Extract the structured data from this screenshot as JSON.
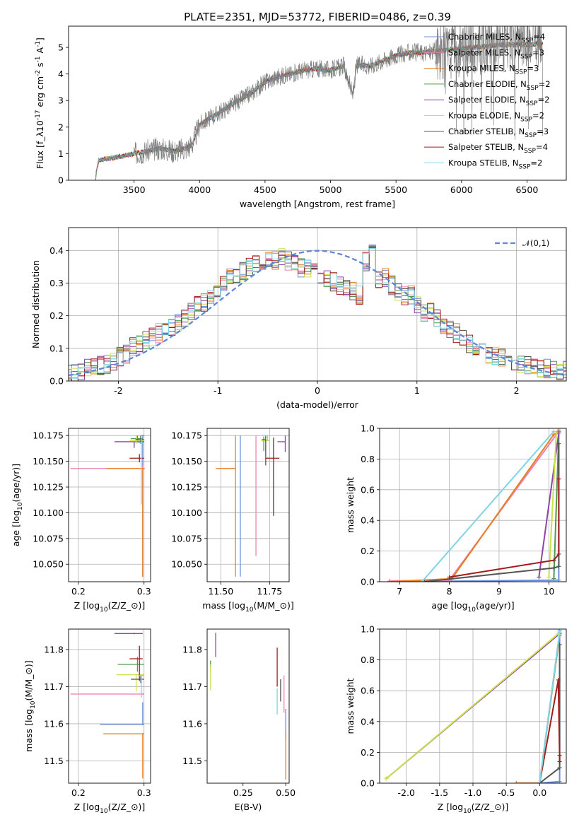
{
  "title": "PLATE=2351, MJD=53772, FIBERID=0486, z=0.39",
  "colors": {
    "chabrier_miles": "#6a8fd6",
    "salpeter_miles": "#ee82b4",
    "kroupa_miles": "#e67e22",
    "chabrier_elodie": "#4e9a4e",
    "salpeter_elodie": "#8e44ad",
    "kroupa_elodie": "#cbe04a",
    "chabrier_stelib": "#555555",
    "salpeter_stelib": "#a31c1c",
    "kroupa_stelib": "#7fd6e3",
    "data": "#808080",
    "gauss": "#5f87d6"
  },
  "chart_data": [
    {
      "id": "spectrum",
      "type": "line",
      "xlabel": "wavelength [Angstrom, rest frame]",
      "ylabel": "Flux [f$_\\lambda$10$^{-17}$ erg cm$^{-2}$ s$^{-1}$ A$^{-1}$]",
      "xlim": [
        3000,
        6800
      ],
      "ylim": [
        0,
        5.8
      ],
      "xticks": [
        3500,
        4000,
        4500,
        5000,
        5500,
        6000,
        6500
      ],
      "yticks": [
        0,
        1,
        2,
        3,
        4,
        5
      ],
      "grid": false,
      "legend": "right",
      "series": [
        {
          "name": "Chabrier MILES, N$_{SSP}$=4",
          "color": "#6a8fd6"
        },
        {
          "name": "Salpeter MILES, N$_{SSP}$=3",
          "color": "#ee82b4"
        },
        {
          "name": "Kroupa MILES, N$_{SSP}$=3",
          "color": "#e67e22"
        },
        {
          "name": "Chabrier ELODIE, N$_{SSP}$=2",
          "color": "#4e9a4e"
        },
        {
          "name": "Salpeter ELODIE, N$_{SSP}$=2",
          "color": "#8e44ad"
        },
        {
          "name": "Kroupa ELODIE, N$_{SSP}$=2",
          "color": "#cbe04a"
        },
        {
          "name": "Chabrier STELIB, N$_{SSP}$=3",
          "color": "#555555"
        },
        {
          "name": "Salpeter STELIB, N$_{SSP}$=4",
          "color": "#a31c1c"
        },
        {
          "name": "Kroupa STELIB, N$_{SSP}$=2",
          "color": "#7fd6e3"
        }
      ],
      "continuum": {
        "x": [
          3200,
          3230,
          3400,
          3550,
          3700,
          3800,
          3900,
          3950,
          4000,
          4100,
          4200,
          4300,
          4400,
          4500,
          4600,
          4700,
          4800,
          4900,
          5000,
          5100,
          5170,
          5200,
          5300,
          5400,
          5500,
          5600,
          5700,
          5800,
          5900,
          6000,
          6100,
          6200,
          6300,
          6400,
          6500,
          6600
        ],
        "y": [
          0,
          0.75,
          0.9,
          1.05,
          1.2,
          1.1,
          1.2,
          1.4,
          2.1,
          2.4,
          2.7,
          3.0,
          3.3,
          3.7,
          3.9,
          4.0,
          4.15,
          4.2,
          4.15,
          4.3,
          3.2,
          4.35,
          4.3,
          4.5,
          4.7,
          4.8,
          4.8,
          4.85,
          4.9,
          4.95,
          5.0,
          5.05,
          5.1,
          5.1,
          5.1,
          5.15
        ]
      }
    },
    {
      "id": "residual_hist",
      "type": "bar",
      "xlabel": "(data-model)/error",
      "ylabel": "Normed distribution",
      "xlim": [
        -2.5,
        2.5
      ],
      "ylim": [
        0,
        0.47
      ],
      "xticks": [
        -2,
        -1,
        0,
        1,
        2
      ],
      "yticks": [
        0.0,
        0.1,
        0.2,
        0.3,
        0.4
      ],
      "grid": true,
      "legend": "top-right",
      "gauss_label": "$\\mathcal{N}(0,1)$",
      "bin_width": 0.1,
      "base_shape": [
        0.02,
        0.02,
        0.025,
        0.03,
        0.035,
        0.04,
        0.045,
        0.05,
        0.055,
        0.07,
        0.08,
        0.1,
        0.11,
        0.12,
        0.13,
        0.14,
        0.15,
        0.16,
        0.17,
        0.18,
        0.2,
        0.22,
        0.23,
        0.25,
        0.27,
        0.28,
        0.3,
        0.31,
        0.32,
        0.33,
        0.34,
        0.35,
        0.36,
        0.35,
        0.36,
        0.35,
        0.34,
        0.33,
        0.33,
        0.32,
        0.31,
        0.3,
        0.29,
        0.28,
        0.27,
        0.26,
        0.25,
        0.35,
        0.4,
        0.3,
        0.3,
        0.28,
        0.26,
        0.25,
        0.25,
        0.22,
        0.2,
        0.2,
        0.18,
        0.16,
        0.15,
        0.14,
        0.12,
        0.11,
        0.1,
        0.09,
        0.08,
        0.075,
        0.065,
        0.06,
        0.055,
        0.05,
        0.045,
        0.04,
        0.04,
        0.035,
        0.03,
        0.03,
        0.03,
        0.03,
        0.03,
        0.03
      ]
    },
    {
      "id": "age_vs_Z",
      "type": "scatter",
      "xlabel": "Z [log$_{10}$(Z/Z$_\\odot$)]",
      "ylabel": "age  [log$_{10}$($age/yr$)]",
      "xlim": [
        0.185,
        0.31
      ],
      "ylim": [
        10.033,
        10.182
      ],
      "xticks": [
        0.2,
        0.3
      ],
      "yticks": [
        10.05,
        10.075,
        10.1,
        10.125,
        10.15,
        10.175
      ],
      "grid": true,
      "points": [
        {
          "x": 0.298,
          "y": 10.175,
          "xerr": [
            0.002,
            0.002
          ],
          "yerr": [
            0.137,
            0.0
          ],
          "color": "#6a8fd6"
        },
        {
          "x": 0.298,
          "y": 10.143,
          "xerr": [
            0.11,
            0.003
          ],
          "yerr": [
            0.003,
            0.003
          ],
          "color": "#ee82b4"
        },
        {
          "x": 0.298,
          "y": 10.143,
          "xerr": [
            0.055,
            0.003
          ],
          "yerr": [
            0.105,
            0.0
          ],
          "color": "#e67e22"
        },
        {
          "x": 0.29,
          "y": 10.172,
          "xerr": [
            0.01,
            0.008
          ],
          "yerr": [
            0.003,
            0.003
          ],
          "color": "#4e9a4e"
        },
        {
          "x": 0.285,
          "y": 10.169,
          "xerr": [
            0.03,
            0.015
          ],
          "yerr": [
            0.006,
            0.0
          ],
          "color": "#8e44ad"
        },
        {
          "x": 0.288,
          "y": 10.17,
          "xerr": [
            0.01,
            0.012
          ],
          "yerr": [
            0.003,
            0.005
          ],
          "color": "#cbe04a"
        },
        {
          "x": 0.295,
          "y": 10.171,
          "xerr": [
            0.008,
            0.005
          ],
          "yerr": [
            0.004,
            0.004
          ],
          "color": "#555555"
        },
        {
          "x": 0.293,
          "y": 10.153,
          "xerr": [
            0.015,
            0.007
          ],
          "yerr": [
            0.004,
            0.004
          ],
          "color": "#a31c1c"
        },
        {
          "x": 0.296,
          "y": 10.168,
          "xerr": [
            0.005,
            0.004
          ],
          "yerr": [
            0.06,
            0.004
          ],
          "color": "#7fd6e3"
        }
      ]
    },
    {
      "id": "age_vs_mass",
      "type": "scatter",
      "xlabel": "mass [log$_{10}$($M/M_\\odot$)]",
      "ylabel": "",
      "xlim": [
        11.43,
        11.85
      ],
      "ylim": [
        10.033,
        10.182
      ],
      "xticks": [
        11.5,
        11.75
      ],
      "yticks": [
        10.05,
        10.075,
        10.1,
        10.125,
        10.15,
        10.175
      ],
      "grid": true,
      "points": [
        {
          "x": 11.6,
          "y": 10.175,
          "xerr": [
            0.0,
            0.0
          ],
          "yerr": [
            0.137,
            0.0
          ],
          "color": "#6a8fd6"
        },
        {
          "x": 11.68,
          "y": 10.175,
          "xerr": [
            0.0,
            0.0
          ],
          "yerr": [
            0.117,
            0.0
          ],
          "color": "#ee82b4"
        },
        {
          "x": 11.575,
          "y": 10.143,
          "xerr": [
            0.1,
            0.0
          ],
          "yerr": [
            0.105,
            0.032
          ],
          "color": "#e67e22"
        },
        {
          "x": 11.72,
          "y": 10.17,
          "xerr": [
            0.01,
            0.01
          ],
          "yerr": [
            0.01,
            0.004
          ],
          "color": "#4e9a4e"
        },
        {
          "x": 11.83,
          "y": 10.169,
          "xerr": [
            0.04,
            0.0
          ],
          "yerr": [
            0.01,
            0.006
          ],
          "color": "#8e44ad"
        },
        {
          "x": 11.73,
          "y": 10.17,
          "xerr": [
            0.02,
            0.02
          ],
          "yerr": [
            0.01,
            0.005
          ],
          "color": "#cbe04a"
        },
        {
          "x": 11.73,
          "y": 10.171,
          "xerr": [
            0.02,
            0.0
          ],
          "yerr": [
            0.025,
            0.004
          ],
          "color": "#555555"
        },
        {
          "x": 11.77,
          "y": 10.153,
          "xerr": [
            0.04,
            0.03
          ],
          "yerr": [
            0.056,
            0.02
          ],
          "color": "#a31c1c"
        },
        {
          "x": 11.74,
          "y": 10.175,
          "xerr": [
            0.03,
            0.0
          ],
          "yerr": [
            0.005,
            0.0
          ],
          "color": "#7fd6e3"
        }
      ]
    },
    {
      "id": "massweight_vs_age",
      "type": "line",
      "xlabel": "age  [log$_{10}$($age/yr$)]",
      "ylabel": "mass weight",
      "xlim": [
        6.6,
        10.35
      ],
      "ylim": [
        0,
        1
      ],
      "xticks": [
        7,
        8,
        9,
        10
      ],
      "yticks": [
        0.0,
        0.2,
        0.4,
        0.6,
        0.8,
        1.0
      ],
      "grid": true,
      "series": [
        {
          "color": "#6a8fd6",
          "x": [
            6.8,
            10.2,
            10.2
          ],
          "y": [
            0.0,
            0.01,
            0.99
          ]
        },
        {
          "color": "#ee82b4",
          "x": [
            6.8,
            8.0,
            10.2
          ],
          "y": [
            0.005,
            0.01,
            0.98
          ]
        },
        {
          "color": "#e67e22",
          "x": [
            6.8,
            8.05,
            10.1,
            10.2
          ],
          "y": [
            0.0,
            0.02,
            0.96,
            0.98
          ]
        },
        {
          "color": "#4e9a4e",
          "x": [
            10.1,
            10.2
          ],
          "y": [
            0.02,
            0.97
          ]
        },
        {
          "color": "#8e44ad",
          "x": [
            9.8,
            10.2
          ],
          "y": [
            0.03,
            0.97
          ]
        },
        {
          "color": "#cbe04a",
          "x": [
            10.0,
            10.15
          ],
          "y": [
            0.03,
            0.97
          ]
        },
        {
          "color": "#555555",
          "x": [
            7.5,
            10.1,
            10.2,
            10.2
          ],
          "y": [
            0.0,
            0.09,
            0.1,
            0.9
          ]
        },
        {
          "color": "#a31c1c",
          "x": [
            8.0,
            10.1,
            10.2,
            10.2
          ],
          "y": [
            0.03,
            0.14,
            0.18,
            0.67
          ]
        },
        {
          "color": "#7fd6e3",
          "x": [
            7.45,
            10.1
          ],
          "y": [
            0.0,
            0.98
          ]
        }
      ]
    },
    {
      "id": "mass_vs_Z",
      "type": "scatter",
      "xlabel": "Z [log$_{10}$(Z/Z$_\\odot$)]",
      "ylabel": "mass [log$_{10}$($M/M_\\odot$)]",
      "xlim": [
        0.185,
        0.31
      ],
      "ylim": [
        11.44,
        11.855
      ],
      "xticks": [
        0.2,
        0.3
      ],
      "yticks": [
        11.5,
        11.6,
        11.7,
        11.8
      ],
      "grid": true,
      "points": [
        {
          "x": 0.298,
          "y": 11.598,
          "xerr": [
            0.065,
            0.002
          ],
          "yerr": [
            0.002,
            0.06
          ],
          "color": "#6a8fd6"
        },
        {
          "x": 0.298,
          "y": 11.68,
          "xerr": [
            0.11,
            0.002
          ],
          "yerr": [
            0.002,
            0.002
          ],
          "color": "#ee82b4"
        },
        {
          "x": 0.298,
          "y": 11.573,
          "xerr": [
            0.06,
            0.002
          ],
          "yerr": [
            0.12,
            0.002
          ],
          "color": "#e67e22"
        },
        {
          "x": 0.29,
          "y": 11.76,
          "xerr": [
            0.03,
            0.01
          ],
          "yerr": [
            0.02,
            0.02
          ],
          "color": "#4e9a4e"
        },
        {
          "x": 0.285,
          "y": 11.843,
          "xerr": [
            0.03,
            0.013
          ],
          "yerr": [
            0.002,
            0.002
          ],
          "color": "#8e44ad"
        },
        {
          "x": 0.288,
          "y": 11.732,
          "xerr": [
            0.03,
            0.012
          ],
          "yerr": [
            0.045,
            0.002
          ],
          "color": "#cbe04a"
        },
        {
          "x": 0.295,
          "y": 11.72,
          "xerr": [
            0.015,
            0.005
          ],
          "yerr": [
            0.01,
            0.01
          ],
          "color": "#555555"
        },
        {
          "x": 0.293,
          "y": 11.775,
          "xerr": [
            0.015,
            0.005
          ],
          "yerr": [
            0.06,
            0.035
          ],
          "color": "#a31c1c"
        },
        {
          "x": 0.296,
          "y": 11.73,
          "xerr": [
            0.005,
            0.004
          ],
          "yerr": [
            0.06,
            0.002
          ],
          "color": "#7fd6e3"
        }
      ]
    },
    {
      "id": "mass_vs_ebv",
      "type": "scatter",
      "xlabel": "E(B-V)",
      "ylabel": "",
      "xlim": [
        0.04,
        0.52
      ],
      "ylim": [
        11.44,
        11.855
      ],
      "xticks": [
        0.25,
        0.5
      ],
      "yticks": [
        11.5,
        11.6,
        11.7,
        11.8
      ],
      "grid": false,
      "points": [
        {
          "x": 0.5,
          "y": 11.6,
          "xerr": [
            0.0,
            0.0
          ],
          "yerr": [
            0.04,
            0.04
          ],
          "color": "#6a8fd6"
        },
        {
          "x": 0.49,
          "y": 11.68,
          "xerr": [
            0.0,
            0.0
          ],
          "yerr": [
            0.05,
            0.05
          ],
          "color": "#ee82b4"
        },
        {
          "x": 0.5,
          "y": 11.5,
          "xerr": [
            0.0,
            0.0
          ],
          "yerr": [
            0.05,
            0.08
          ],
          "color": "#e67e22"
        },
        {
          "x": 0.06,
          "y": 11.76,
          "xerr": [
            0.0,
            0.0
          ],
          "yerr": [
            0.01,
            0.01
          ],
          "color": "#4e9a4e"
        },
        {
          "x": 0.09,
          "y": 11.815,
          "xerr": [
            0.0,
            0.0
          ],
          "yerr": [
            0.035,
            0.03
          ],
          "color": "#8e44ad"
        },
        {
          "x": 0.06,
          "y": 11.72,
          "xerr": [
            0.0,
            0.0
          ],
          "yerr": [
            0.03,
            0.04
          ],
          "color": "#cbe04a"
        },
        {
          "x": 0.47,
          "y": 11.69,
          "xerr": [
            0.0,
            0.0
          ],
          "yerr": [
            0.03,
            0.03
          ],
          "color": "#555555"
        },
        {
          "x": 0.45,
          "y": 11.75,
          "xerr": [
            0.0,
            0.0
          ],
          "yerr": [
            0.05,
            0.055
          ],
          "color": "#a31c1c"
        },
        {
          "x": 0.45,
          "y": 11.66,
          "xerr": [
            0.0,
            0.0
          ],
          "yerr": [
            0.035,
            0.035
          ],
          "color": "#7fd6e3"
        }
      ]
    },
    {
      "id": "massweight_vs_Z",
      "type": "line",
      "xlabel": "Z [log$_{10}$(Z/Z$_\\odot$)]",
      "ylabel": "mass weight",
      "xlim": [
        -2.4,
        0.4
      ],
      "ylim": [
        0,
        1
      ],
      "xticks": [
        -2.0,
        -1.5,
        -1.0,
        -0.5,
        0.0
      ],
      "yticks": [
        0.0,
        0.2,
        0.4,
        0.6,
        0.8,
        1.0
      ],
      "grid": true,
      "series": [
        {
          "color": "#6a8fd6",
          "x": [
            0.0,
            0.3,
            0.3
          ],
          "y": [
            0.0,
            0.01,
            0.99
          ]
        },
        {
          "color": "#ee82b4",
          "x": [
            0.0,
            0.3
          ],
          "y": [
            0.0,
            0.98
          ]
        },
        {
          "color": "#e67e22",
          "x": [
            -0.35,
            0.0,
            0.3
          ],
          "y": [
            0.0,
            0.0,
            0.96
          ]
        },
        {
          "color": "#4e9a4e",
          "x": [
            0.0,
            0.3
          ],
          "y": [
            0.0,
            0.97
          ]
        },
        {
          "color": "#8e44ad",
          "x": [
            -2.3,
            0.3
          ],
          "y": [
            0.03,
            0.97
          ]
        },
        {
          "color": "#cbe04a",
          "x": [
            -2.3,
            0.28
          ],
          "y": [
            0.03,
            0.97
          ]
        },
        {
          "color": "#555555",
          "x": [
            0.0,
            0.3,
            0.3
          ],
          "y": [
            0.0,
            0.1,
            0.9
          ]
        },
        {
          "color": "#a31c1c",
          "x": [
            0.0,
            0.28,
            0.3,
            0.3
          ],
          "y": [
            0.0,
            0.67,
            0.18,
            0.14
          ]
        },
        {
          "color": "#7fd6e3",
          "x": [
            0.0,
            0.3
          ],
          "y": [
            0.0,
            0.98
          ]
        }
      ]
    }
  ]
}
